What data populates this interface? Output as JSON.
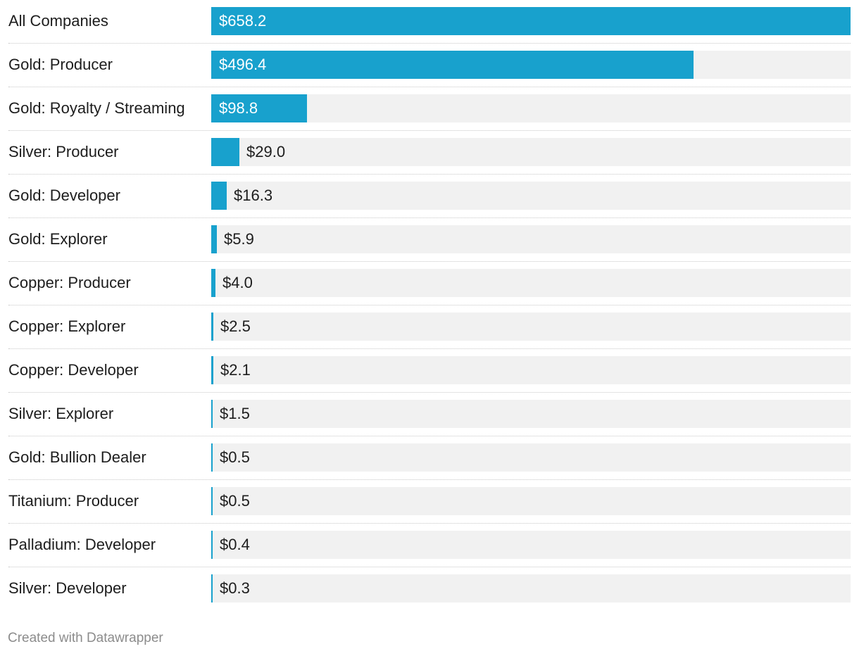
{
  "chart_data": {
    "type": "bar",
    "orientation": "horizontal",
    "categories": [
      "All Companies",
      "Gold: Producer",
      "Gold: Royalty / Streaming",
      "Silver: Producer",
      "Gold: Developer",
      "Gold: Explorer",
      "Copper: Producer",
      "Copper: Explorer",
      "Copper: Developer",
      "Silver: Explorer",
      "Gold: Bullion Dealer",
      "Titanium: Producer",
      "Palladium: Developer",
      "Silver: Developer"
    ],
    "values": [
      658.2,
      496.4,
      98.8,
      29.0,
      16.3,
      5.9,
      4.0,
      2.5,
      2.1,
      1.5,
      0.5,
      0.5,
      0.4,
      0.3
    ],
    "value_labels": [
      "$658.2",
      "$496.4",
      "$98.8",
      "$29.0",
      "$16.3",
      "$5.9",
      "$4.0",
      "$2.5",
      "$2.1",
      "$1.5",
      "$0.5",
      "$0.5",
      "$0.4",
      "$0.3"
    ],
    "xlim": [
      0,
      658.2
    ],
    "title": "",
    "xlabel": "",
    "ylabel": "",
    "bar_color": "#18a1cd",
    "track_color": "#f1f1f1",
    "label_inside_color": "#ffffff",
    "label_outside_color": "#1d1d1d"
  },
  "footer": {
    "credit": "Created with Datawrapper"
  }
}
